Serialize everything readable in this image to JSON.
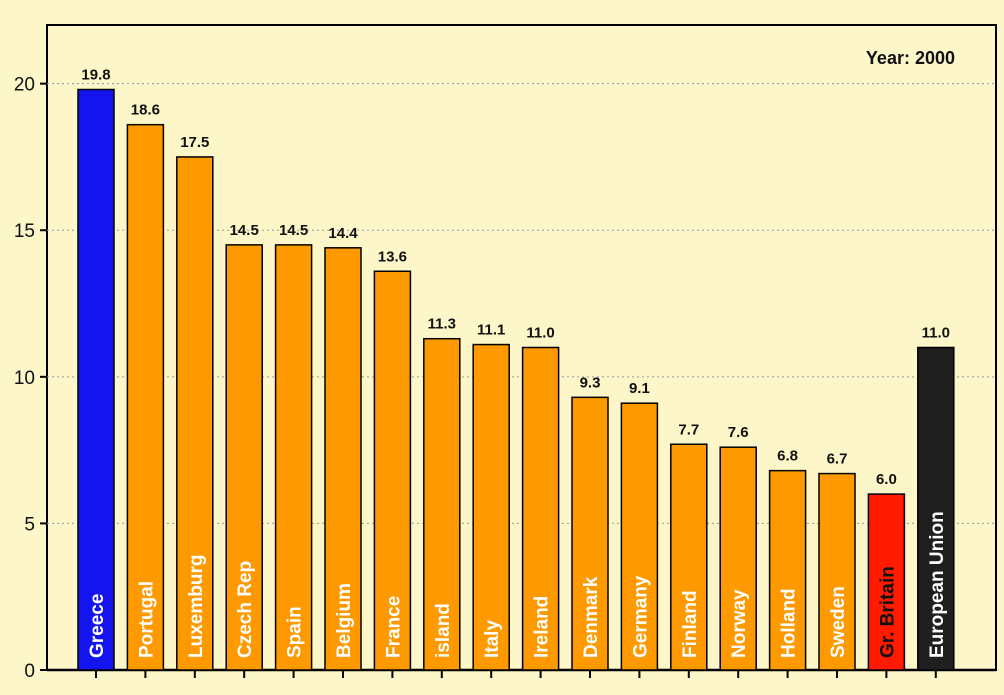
{
  "chart_data": {
    "type": "bar",
    "title": "",
    "annotation": "Year: 2000",
    "categories": [
      "Greece",
      "Portugal",
      "Luxemburg",
      "Czech Rep",
      "Spain",
      "Belgium",
      "France",
      "island",
      "Italy",
      "Ireland",
      "Denmark",
      "Germany",
      "Finland",
      "Norway",
      "Holland",
      "Sweden",
      "Gr. Britain",
      "European Union"
    ],
    "values": [
      19.8,
      18.6,
      17.5,
      14.5,
      14.5,
      14.4,
      13.6,
      11.3,
      11.1,
      11.0,
      9.3,
      9.1,
      7.7,
      7.6,
      6.8,
      6.7,
      6.0,
      11.0
    ],
    "value_labels": [
      "19.8",
      "18.6",
      "17.5",
      "14.5",
      "14.5",
      "14.4",
      "13.6",
      "11.3",
      "11.1",
      "11.0",
      "9.3",
      "9.1",
      "7.7",
      "7.6",
      "6.8",
      "6.7",
      "6.0",
      "11.0"
    ],
    "bar_colors": [
      "#1414ee",
      "#ff9900",
      "#ff9900",
      "#ff9900",
      "#ff9900",
      "#ff9900",
      "#ff9900",
      "#ff9900",
      "#ff9900",
      "#ff9900",
      "#ff9900",
      "#ff9900",
      "#ff9900",
      "#ff9900",
      "#ff9900",
      "#ff9900",
      "#ff1a00",
      "#1f1f1f"
    ],
    "label_colors": [
      "#ffffff",
      "#ffffff",
      "#ffffff",
      "#ffffff",
      "#ffffff",
      "#ffffff",
      "#ffffff",
      "#ffffff",
      "#ffffff",
      "#ffffff",
      "#ffffff",
      "#ffffff",
      "#ffffff",
      "#ffffff",
      "#ffffff",
      "#ffffff",
      "#111111",
      "#ffffff"
    ],
    "yticks": [
      0,
      5,
      10,
      15,
      20
    ],
    "ylim": [
      0,
      22
    ],
    "xlabel": "",
    "ylabel": "",
    "grid": true,
    "background": "#fdf6c8"
  }
}
